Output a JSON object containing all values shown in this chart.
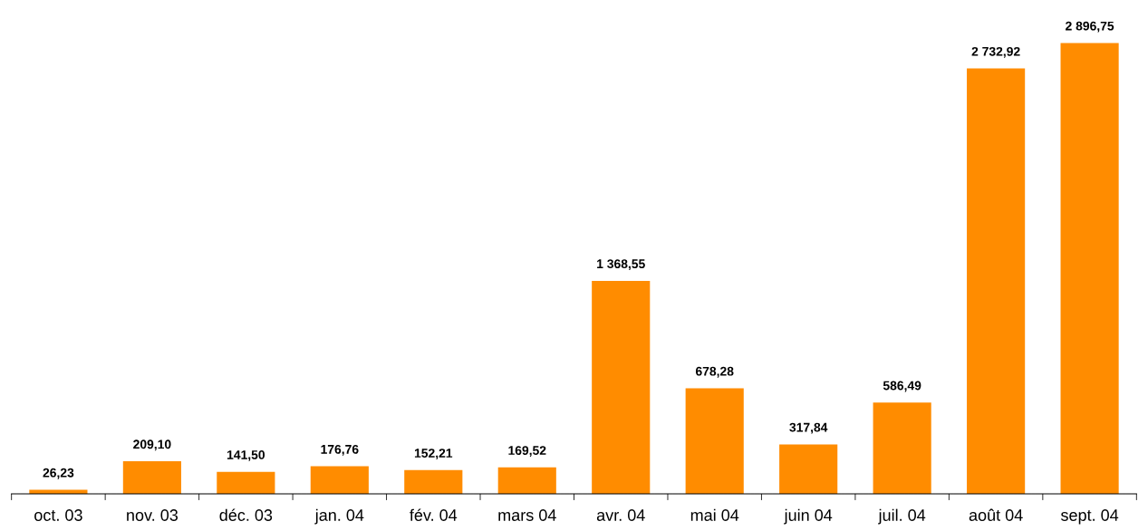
{
  "chart_data": {
    "type": "bar",
    "categories": [
      "oct. 03",
      "nov. 03",
      "déc. 03",
      "jan. 04",
      "fév. 04",
      "mars 04",
      "avr. 04",
      "mai 04",
      "juin 04",
      "juil. 04",
      "août 04",
      "sept. 04"
    ],
    "values": [
      26.23,
      209.1,
      141.5,
      176.76,
      152.21,
      169.52,
      1368.55,
      678.28,
      317.84,
      586.49,
      2732.92,
      2896.75
    ],
    "value_labels": [
      "26,23",
      "209,10",
      "141,50",
      "176,76",
      "152,21",
      "169,52",
      "1 368,55",
      "678,28",
      "317,84",
      "586,49",
      "2 732,92",
      "2 896,75"
    ],
    "color": "#ff8c00",
    "grid": false
  }
}
